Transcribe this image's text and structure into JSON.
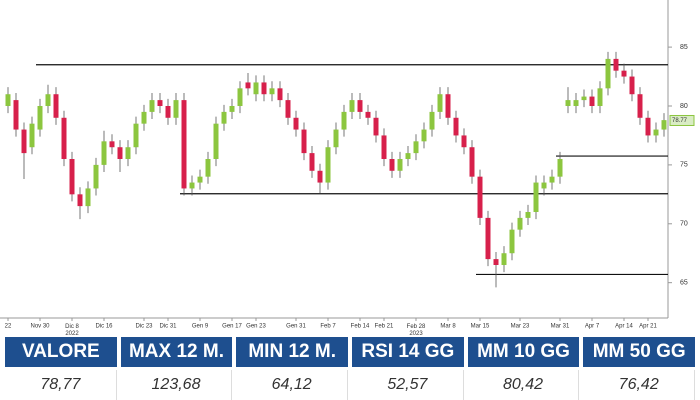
{
  "chart_data": {
    "type": "candlestick",
    "categories": [
      "22",
      null,
      null,
      null,
      "Nov 30",
      null,
      null,
      null,
      "Dic 8\n2022",
      null,
      null,
      null,
      "Dic 16",
      null,
      null,
      null,
      null,
      "Dic 23",
      null,
      null,
      "Dic 31",
      null,
      null,
      null,
      "Gen 9",
      null,
      null,
      null,
      "Gen 17",
      null,
      null,
      "Gen 23",
      null,
      null,
      null,
      null,
      "Gen 31",
      null,
      null,
      null,
      "Feb 7",
      null,
      null,
      null,
      "Feb 14",
      null,
      null,
      "Feb 21",
      null,
      null,
      null,
      "Feb 28\n2023",
      null,
      null,
      null,
      "Mar 8",
      null,
      null,
      null,
      "Mar 15",
      null,
      null,
      null,
      null,
      "Mar 23",
      null,
      null,
      null,
      null,
      "Mar 31",
      null,
      null,
      null,
      "Apr 7",
      null,
      null,
      null,
      "Apr 14",
      null,
      null,
      "Apr 21",
      null,
      null
    ],
    "open": [
      80,
      80.5,
      78,
      76.5,
      78,
      80,
      81,
      79,
      75.5,
      72.5,
      71.5,
      73,
      75,
      77,
      76.5,
      75.5,
      76.5,
      78.5,
      79.5,
      80.5,
      80,
      79,
      80.5,
      73,
      73.5,
      74,
      75.5,
      78.5,
      79.5,
      80,
      82,
      81,
      82,
      81,
      81.5,
      80.5,
      79,
      78,
      76,
      74.5,
      73.5,
      76.5,
      78,
      79.5,
      80.5,
      79.5,
      79,
      77.5,
      75.5,
      74.5,
      75.5,
      76,
      77,
      78,
      79.5,
      81,
      79,
      77.5,
      76.5,
      74,
      70.5,
      67,
      66.5,
      67.5,
      69.5,
      70.5,
      71,
      73,
      73.5,
      74,
      80,
      80,
      80.5,
      80.8,
      80,
      81.5,
      84,
      83,
      82.5,
      81,
      79,
      77.5,
      78
    ],
    "high": [
      81.6,
      81.1,
      78.6,
      79.1,
      80.6,
      81.8,
      81.6,
      79.6,
      76.1,
      73.1,
      73.6,
      75.6,
      77.9,
      77.6,
      77.1,
      77.1,
      79.1,
      80.1,
      81.1,
      81.1,
      80.6,
      81.1,
      81.1,
      74.1,
      74.6,
      76.1,
      79.1,
      80.1,
      80.6,
      82.1,
      82.8,
      82.6,
      82.6,
      82.1,
      82.1,
      81.1,
      79.6,
      78.6,
      76.6,
      75.1,
      77.1,
      78.6,
      80.1,
      81.1,
      81.1,
      80.1,
      79.6,
      78.1,
      76.1,
      76.1,
      76.6,
      77.6,
      78.6,
      80.1,
      81.6,
      81.6,
      79.6,
      78.1,
      77.1,
      74.6,
      71.1,
      67.6,
      68.1,
      70.1,
      71.1,
      71.6,
      74.1,
      74.1,
      74.6,
      76.1,
      81.6,
      81.1,
      81.4,
      81.4,
      82.1,
      84.6,
      84.6,
      83.6,
      83.1,
      81.6,
      79.6,
      78.6,
      79.4
    ],
    "low": [
      79.4,
      77.4,
      73.8,
      75.9,
      77.4,
      79.4,
      78.4,
      74.9,
      71.9,
      70.4,
      70.9,
      72.4,
      74.4,
      75.9,
      74.4,
      74.9,
      75.9,
      77.9,
      78.9,
      79.4,
      78.4,
      78.4,
      72.4,
      72.4,
      72.9,
      73.4,
      74.9,
      77.9,
      78.9,
      79.4,
      80.9,
      80.4,
      80.4,
      80.4,
      79.9,
      78.4,
      77.4,
      75.4,
      73.9,
      72.6,
      72.9,
      75.9,
      77.4,
      78.9,
      78.9,
      78.4,
      76.9,
      74.9,
      73.9,
      73.9,
      74.9,
      75.4,
      76.4,
      77.4,
      78.9,
      78.4,
      76.9,
      75.9,
      73.4,
      69.9,
      66.4,
      64.6,
      65.9,
      66.9,
      68.9,
      69.9,
      70.4,
      72.4,
      72.9,
      73.4,
      79.4,
      79.4,
      79.9,
      79.4,
      79.4,
      80.9,
      82.4,
      81.9,
      80.4,
      78.4,
      76.9,
      76.9,
      77.4
    ],
    "close": [
      81,
      78,
      76,
      78.5,
      80,
      81,
      79,
      75.5,
      72.5,
      71.5,
      73,
      75,
      77,
      76.5,
      75.5,
      76.5,
      78.5,
      79.5,
      80.5,
      80,
      79,
      80.5,
      73,
      73.5,
      74,
      75.5,
      78.5,
      79.5,
      80,
      81.5,
      81.5,
      82,
      81,
      81.5,
      80.5,
      79,
      78,
      76,
      74.5,
      73.5,
      76.5,
      78,
      79.5,
      80.5,
      79.5,
      79,
      77.5,
      75.5,
      74.5,
      75.5,
      76,
      77,
      78,
      79.5,
      81,
      79,
      77.5,
      76.5,
      74,
      70.5,
      67,
      66.5,
      67.5,
      69.5,
      70.5,
      71,
      73.5,
      73.5,
      74,
      75.5,
      80.5,
      80.5,
      80.8,
      80,
      81.5,
      84,
      83,
      82.5,
      81,
      79,
      77.5,
      78,
      78.8
    ],
    "up_color": "#8cc63f",
    "down_color": "#d7204b",
    "levels": [
      {
        "value": 83.5,
        "start": 4
      },
      {
        "value": 72.55,
        "start": 22
      },
      {
        "value": 75.75,
        "start": 69
      },
      {
        "value": 65.7,
        "start": 59
      }
    ],
    "last_price": 78.77,
    "ylim": [
      62,
      89
    ],
    "yticks": [
      65,
      70,
      75,
      80,
      85
    ]
  },
  "table": {
    "headers": [
      "VALORE",
      "MAX 12 M.",
      "MIN 12 M.",
      "RSI 14 GG",
      "MM 10 GG",
      "MM 50 GG"
    ],
    "values": [
      "78,77",
      "123,68",
      "64,12",
      "52,57",
      "80,42",
      "76,42"
    ]
  }
}
